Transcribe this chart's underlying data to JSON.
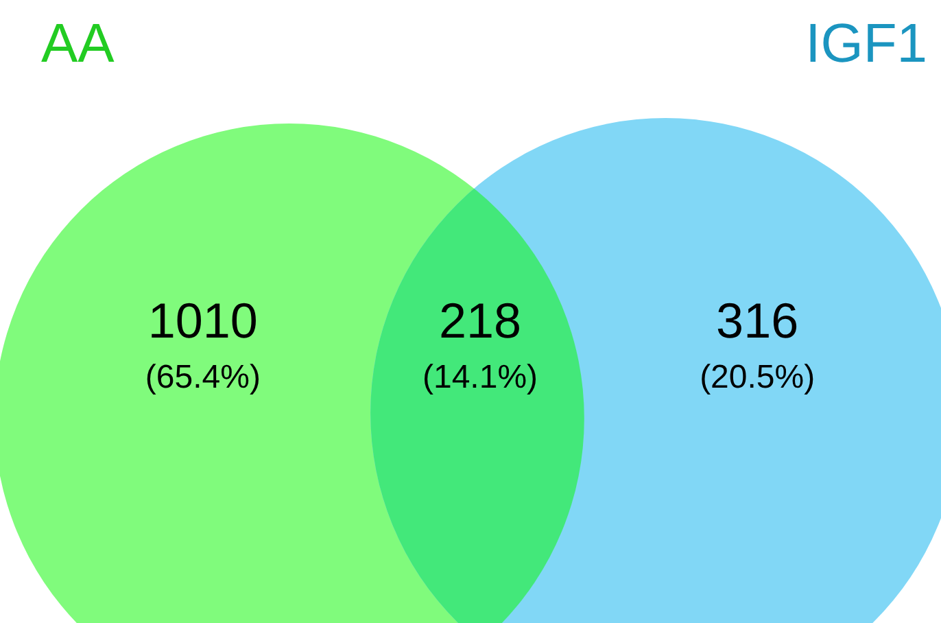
{
  "chart_data": {
    "type": "other",
    "categories": [
      "AA",
      null,
      "IGF1"
    ],
    "values": [
      65.4,
      14.1,
      20.5
    ],
    "value_labels": [
      "(65.4%)",
      "(14.1%)",
      "(20.5%)"
    ],
    "annotations": [
      "1010",
      "218",
      "316"
    ],
    "colors": [
      "#80fb7c",
      "#43e87a",
      "#81d7f6"
    ]
  }
}
